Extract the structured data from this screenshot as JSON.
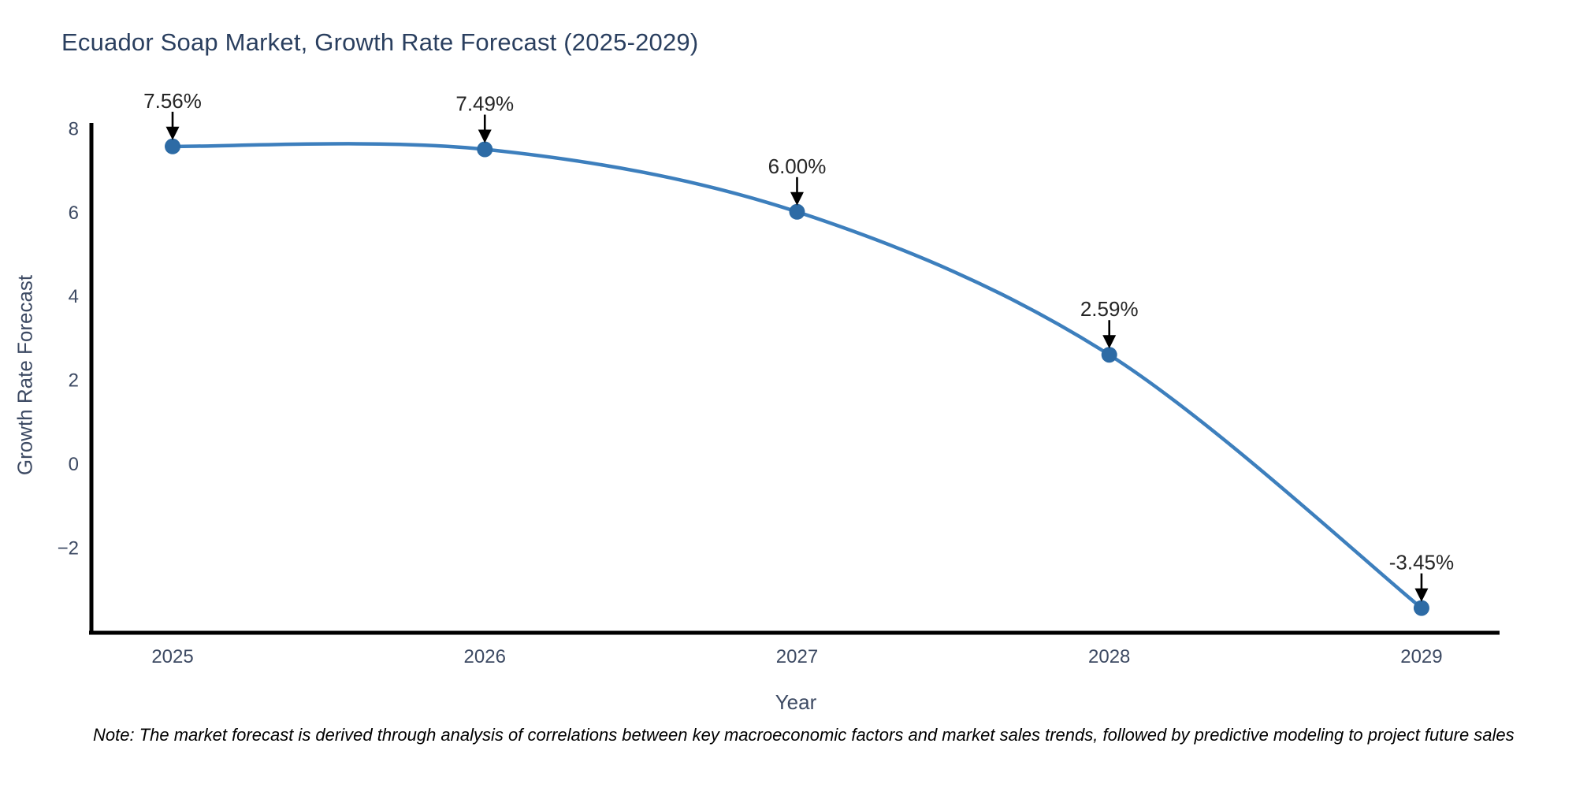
{
  "chart_data": {
    "type": "line",
    "title": "Ecuador Soap Market, Growth Rate Forecast (2025-2029)",
    "xlabel": "Year",
    "ylabel": "Growth Rate Forecast",
    "x": [
      2025,
      2026,
      2027,
      2028,
      2029
    ],
    "values": [
      7.56,
      7.49,
      6.0,
      2.59,
      -3.45
    ],
    "point_labels": [
      "7.56%",
      "7.49%",
      "6.00%",
      "2.59%",
      "-3.45%"
    ],
    "xticks": [
      2025,
      2026,
      2027,
      2028,
      2029
    ],
    "yticks": [
      8,
      6,
      4,
      2,
      0,
      -2
    ],
    "xlim": [
      2024.74,
      2029.25
    ],
    "ylim": [
      -4.04,
      8.12
    ],
    "grid": false,
    "legend": "none",
    "colors": {
      "line": "#3d7fbd",
      "marker": "#2d6ba5",
      "annotation_text": "#262626",
      "arrow": "#000000",
      "axis_spine": "#000000",
      "tick_label": "#3d4a63",
      "title": "#2a3f5f"
    }
  },
  "footnote": "Note: The market forecast is derived through analysis of correlations between key macroeconomic factors and market sales trends, followed by predictive modeling to project future sales"
}
